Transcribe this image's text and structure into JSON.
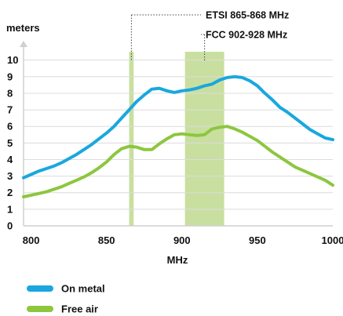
{
  "chart_data": {
    "type": "line",
    "xlabel": "MHz",
    "ylabel": "meters",
    "xlim": [
      795,
      1000
    ],
    "ylim": [
      0,
      10.6
    ],
    "x_ticks": [
      800,
      850,
      900,
      950,
      1000
    ],
    "y_ticks": [
      0,
      1,
      2,
      3,
      4,
      5,
      6,
      7,
      8,
      9,
      10
    ],
    "grid": "horizontal",
    "legend_position": "bottom-left",
    "bands": [
      {
        "label": "ETSI 865-868 MHz",
        "from": 865,
        "to": 868,
        "color": "#c9dfa0"
      },
      {
        "label": "FCC 902-928 MHz",
        "from": 902,
        "to": 928,
        "color": "#c9dfa0"
      }
    ],
    "series": [
      {
        "name": "On metal",
        "color": "#1aa7df",
        "x": [
          795,
          800,
          805,
          810,
          815,
          820,
          825,
          830,
          835,
          840,
          845,
          850,
          855,
          860,
          865,
          870,
          875,
          880,
          885,
          890,
          895,
          900,
          905,
          910,
          915,
          920,
          925,
          930,
          935,
          940,
          945,
          950,
          955,
          960,
          965,
          970,
          975,
          980,
          985,
          990,
          995,
          1000
        ],
        "values": [
          2.9,
          3.1,
          3.3,
          3.45,
          3.6,
          3.8,
          4.05,
          4.3,
          4.6,
          4.9,
          5.25,
          5.6,
          6.0,
          6.5,
          7.0,
          7.5,
          7.9,
          8.25,
          8.3,
          8.15,
          8.05,
          8.15,
          8.2,
          8.3,
          8.45,
          8.55,
          8.8,
          8.95,
          9.0,
          8.95,
          8.75,
          8.45,
          8.0,
          7.6,
          7.15,
          6.85,
          6.5,
          6.15,
          5.8,
          5.55,
          5.3,
          5.2
        ]
      },
      {
        "name": "Free air",
        "color": "#8dc63f",
        "x": [
          795,
          800,
          805,
          810,
          815,
          820,
          825,
          830,
          835,
          840,
          845,
          850,
          855,
          860,
          865,
          870,
          875,
          880,
          885,
          890,
          895,
          900,
          905,
          910,
          915,
          920,
          925,
          930,
          935,
          940,
          945,
          950,
          955,
          960,
          965,
          970,
          975,
          980,
          985,
          990,
          995,
          1000
        ],
        "values": [
          1.75,
          1.85,
          1.95,
          2.05,
          2.2,
          2.35,
          2.55,
          2.75,
          2.95,
          3.2,
          3.5,
          3.85,
          4.3,
          4.65,
          4.8,
          4.75,
          4.6,
          4.6,
          4.95,
          5.25,
          5.5,
          5.55,
          5.5,
          5.45,
          5.5,
          5.85,
          5.95,
          6.0,
          5.85,
          5.65,
          5.4,
          5.15,
          4.8,
          4.45,
          4.15,
          3.85,
          3.55,
          3.35,
          3.15,
          2.95,
          2.75,
          2.45
        ]
      }
    ]
  }
}
